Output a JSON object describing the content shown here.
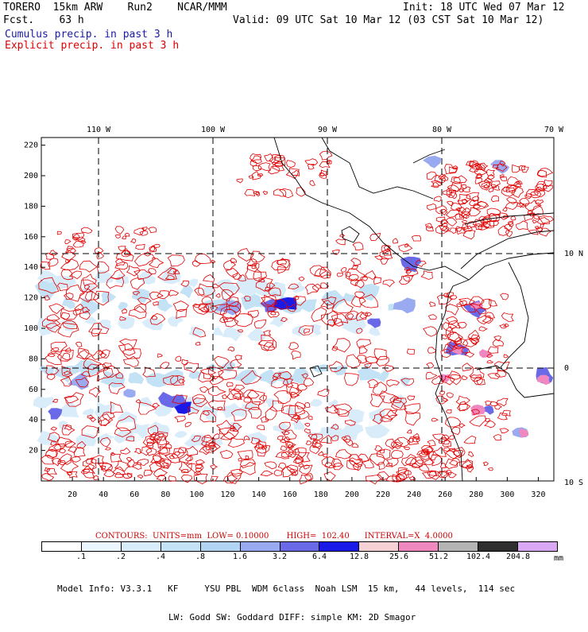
{
  "header": {
    "model_line": "TORERO  15km ARW    Run2    NCAR/MMM",
    "fcst_line": "Fcst.    63 h",
    "init": "Init: 18 UTC Wed 07 Mar 12",
    "valid": "Valid: 09 UTC Sat 10 Mar 12 (03 CST Sat 10 Mar 12)",
    "field1": "Cumulus precip. in past 3 h",
    "field2": "Explicit precip. in past 3 h",
    "field1_color": "#1a1aa6",
    "field2_color": "#e00000"
  },
  "chart_data": {
    "type": "heatmap",
    "top_axis": [
      "110 W",
      "100 W",
      "90 W",
      "80 W",
      "70 W"
    ],
    "right_axis": [
      "10 N",
      "0",
      "10 S"
    ],
    "left_axis": [
      "20",
      "40",
      "60",
      "80",
      "100",
      "120",
      "140",
      "160",
      "180",
      "200",
      "220"
    ],
    "bottom_axis": [
      "20",
      "40",
      "60",
      "80",
      "100",
      "120",
      "140",
      "160",
      "180",
      "200",
      "220",
      "240",
      "260",
      "280",
      "300",
      "320"
    ],
    "x_grid_range": [
      0,
      330
    ],
    "y_grid_range": [
      0,
      225
    ],
    "contours": {
      "text": "CONTOURS:  UNITS=mm  LOW= 0.10000       HIGH=  102.40      INTERVAL=X  4.0000",
      "units": "mm",
      "low": 0.1,
      "high": 102.4,
      "interval_factor": 4.0
    },
    "colorbar": {
      "labels": [
        ".1",
        ".2",
        ".4",
        ".8",
        "1.6",
        "3.2",
        "6.4",
        "12.8",
        "25.6",
        "51.2",
        "102.4",
        "204.8"
      ],
      "colors": [
        "#ffffff",
        "#ebf6ff",
        "#d8ecfa",
        "#c4e2f5",
        "#b0d4f2",
        "#9aaaf0",
        "#6a6ae8",
        "#1a1ae6",
        "#f5d0d5",
        "#f088c0",
        "#b4b4b4",
        "#2e2e2e",
        "#d8a8f4"
      ],
      "unit": "mm"
    },
    "contour_color": "#e00000",
    "land_outline_color": "#000000"
  },
  "footer": {
    "line1": "Model Info: V3.3.1   KF     YSU PBL  WDM 6class  Noah LSM  15 km,   44 levels,  114 sec",
    "line2": "LW: Godd SW: Goddard DIFF: simple KM: 2D Smagor"
  }
}
